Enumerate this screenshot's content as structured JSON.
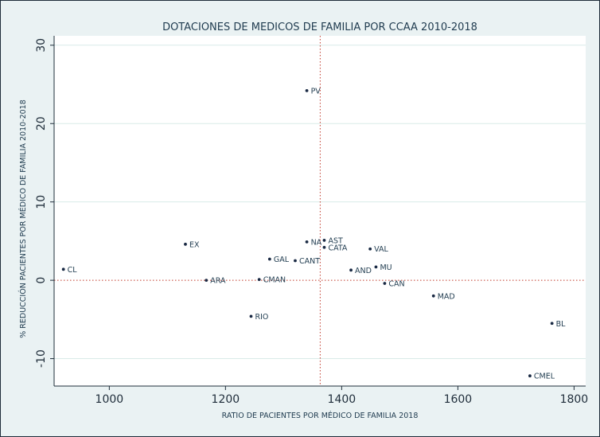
{
  "chart_data": {
    "type": "scatter",
    "title": "DOTACIONES DE MEDICOS DE FAMILIA POR CCAA 2010-2018",
    "xlabel": "RATIO DE PACIENTES POR MÉDICO DE FAMILIA 2018",
    "ylabel": "% REDUCCIÓN PACIENTES POR MÉDICO DE FAMILIA 2010-2018",
    "xlim": [
      905,
      1820
    ],
    "ylim": [
      -13.5,
      31.2
    ],
    "xticks": [
      1000,
      1200,
      1400,
      1600,
      1800
    ],
    "xtick_labels": [
      "1000",
      "1200",
      "1400",
      "1600",
      "1800"
    ],
    "yticks": [
      -10,
      0,
      10,
      20,
      30
    ],
    "ytick_labels": [
      "-10",
      "0",
      "10",
      "20",
      "30"
    ],
    "grid": "horizontal",
    "reference_lines": {
      "x": 1363,
      "y": 0
    },
    "points": [
      {
        "label": "PV",
        "x": 1340,
        "y": 24.2
      },
      {
        "label": "EX",
        "x": 1131,
        "y": 4.6
      },
      {
        "label": "NA",
        "x": 1340,
        "y": 4.9
      },
      {
        "label": "AST",
        "x": 1370,
        "y": 5.1
      },
      {
        "label": "CATA",
        "x": 1370,
        "y": 4.2
      },
      {
        "label": "VAL",
        "x": 1449,
        "y": 4.0
      },
      {
        "label": "GAL",
        "x": 1276,
        "y": 2.7
      },
      {
        "label": "CANT",
        "x": 1320,
        "y": 2.5
      },
      {
        "label": "MU",
        "x": 1459,
        "y": 1.7
      },
      {
        "label": "CL",
        "x": 921,
        "y": 1.4
      },
      {
        "label": "AND",
        "x": 1416,
        "y": 1.3
      },
      {
        "label": "ARA",
        "x": 1167,
        "y": 0.0
      },
      {
        "label": "CMAN",
        "x": 1258,
        "y": 0.1
      },
      {
        "label": "CAN",
        "x": 1474,
        "y": -0.4
      },
      {
        "label": "MAD",
        "x": 1558,
        "y": -2.0
      },
      {
        "label": "RIO",
        "x": 1244,
        "y": -4.6
      },
      {
        "label": "BL",
        "x": 1762,
        "y": -5.5
      },
      {
        "label": "CMEL",
        "x": 1724,
        "y": -12.2
      }
    ]
  },
  "colors": {
    "plot_background": "#ffffff",
    "outer_background": "#eaf2f3",
    "grid": "#d9ebe8",
    "marker": "#1a2a44",
    "reference_line": "#c0392b",
    "axis": "#1f2d3a",
    "text": "#1f3b4f"
  }
}
